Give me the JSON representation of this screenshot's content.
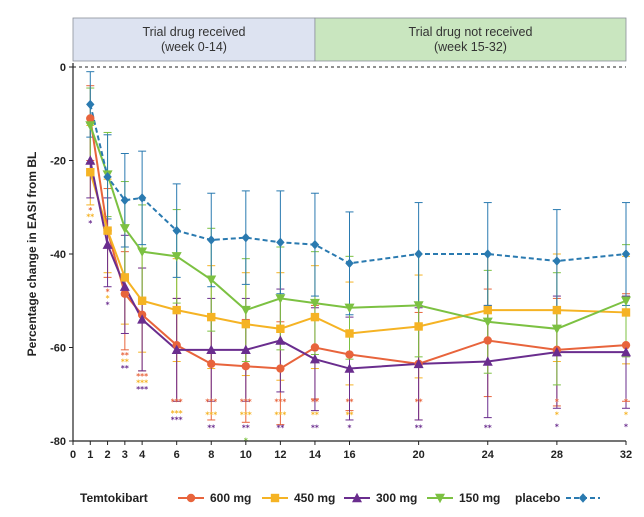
{
  "chart_data": {
    "type": "line",
    "title": "",
    "xlabel": "",
    "ylabel": "Percentage change in EASI from BL",
    "x_ticks": [
      0,
      1,
      2,
      3,
      4,
      6,
      8,
      10,
      12,
      14,
      16,
      20,
      24,
      28,
      32
    ],
    "y_ticks": [
      0,
      -20,
      -40,
      -60,
      -80
    ],
    "xlim": [
      0,
      32
    ],
    "ylim": [
      -80,
      0
    ],
    "period_bands": [
      {
        "label_line1": "Trial drug received",
        "label_line2": "(week 0-14)",
        "x_start": 0,
        "x_end": 14,
        "color": "#dde3f1"
      },
      {
        "label_line1": "Trial drug not received",
        "label_line2": "(week 15-32)",
        "x_start": 14,
        "x_end": 32,
        "color": "#c9e6bf"
      }
    ],
    "legend_title": "Temtokibart",
    "series": [
      {
        "name": "600 mg",
        "color": "#e8643c",
        "marker": "circle",
        "dashed": false,
        "x": [
          1,
          2,
          3,
          4,
          6,
          8,
          10,
          12,
          14,
          16,
          20,
          24,
          28,
          32
        ],
        "y": [
          -11,
          -35,
          -48.5,
          -53,
          -59.5,
          -63.5,
          -64,
          -64.5,
          -60,
          -61.5,
          -63.5,
          -58.5,
          -60.5,
          -59.5
        ],
        "err_up": [
          7,
          9,
          9,
          10,
          10,
          10,
          10,
          10,
          9,
          10,
          11,
          11,
          11,
          11
        ],
        "err_down": [
          9,
          10,
          12,
          12,
          12,
          12,
          12,
          12,
          11,
          12,
          12,
          12,
          12,
          12
        ],
        "significance": [
          "*",
          "*",
          "**",
          "***",
          "***",
          "***",
          "***",
          "***",
          "**",
          "**",
          "**",
          "",
          "*",
          "*"
        ]
      },
      {
        "name": "450 mg",
        "color": "#f5b324",
        "marker": "square",
        "dashed": false,
        "x": [
          1,
          2,
          3,
          4,
          6,
          8,
          10,
          12,
          14,
          16,
          20,
          24,
          28,
          32
        ],
        "y": [
          -22.5,
          -35,
          -45,
          -50,
          -52,
          -53.5,
          -55,
          -56,
          -53.5,
          -57,
          -55.5,
          -52,
          -52,
          -52.5
        ],
        "err_up": [
          10,
          11,
          11,
          11,
          11,
          11,
          11,
          12,
          11,
          11,
          11,
          12,
          12,
          12
        ],
        "err_down": [
          7,
          9,
          10,
          11,
          11,
          11,
          11,
          11,
          11,
          11,
          11,
          11,
          11,
          11
        ],
        "significance": [
          "**",
          "*",
          "**",
          "***",
          "***",
          "***",
          "***",
          "***",
          "**",
          "**",
          "",
          "",
          "*",
          "*"
        ]
      },
      {
        "name": "300 mg",
        "color": "#6a2d8e",
        "marker": "triangle-up",
        "dashed": false,
        "x": [
          1,
          2,
          3,
          4,
          6,
          8,
          10,
          12,
          14,
          16,
          20,
          24,
          28,
          32
        ],
        "y": [
          -20,
          -38,
          -47,
          -54,
          -60.5,
          -60.5,
          -60.5,
          -58.5,
          -62.5,
          -64.5,
          -63.5,
          -63,
          -61,
          -61
        ],
        "err_up": [
          8,
          10,
          11,
          11,
          11,
          11,
          11,
          11,
          11,
          11,
          12,
          12,
          12,
          12
        ],
        "err_down": [
          8,
          9,
          10,
          11,
          11,
          11,
          11,
          11,
          11,
          11,
          12,
          12,
          12,
          12
        ],
        "significance": [
          "*",
          "*",
          "**",
          "***",
          "***",
          "**",
          "**",
          "**",
          "**",
          "*",
          "**",
          "**",
          "*",
          "*"
        ]
      },
      {
        "name": "150 mg",
        "color": "#7cc142",
        "marker": "triangle-down",
        "dashed": false,
        "x": [
          1,
          2,
          3,
          4,
          6,
          8,
          10,
          12,
          14,
          16,
          20,
          24,
          28,
          32
        ],
        "y": [
          -12.5,
          -23,
          -34.5,
          -39.5,
          -40.5,
          -45.5,
          -52,
          -49.5,
          -50.5,
          -51.5,
          -51,
          -54.5,
          -56,
          -50
        ],
        "err_up": [
          8,
          9,
          10,
          10,
          10,
          11,
          11,
          11,
          11,
          11,
          11,
          11,
          12,
          12
        ],
        "err_down": [
          8,
          9,
          10,
          10,
          10,
          11,
          11,
          11,
          11,
          11,
          11,
          11,
          12,
          12
        ],
        "significance": [
          "",
          "",
          "",
          "",
          "",
          "",
          "*",
          "",
          "",
          "",
          "",
          "",
          "",
          ""
        ]
      },
      {
        "name": "placebo",
        "color": "#2a7ab0",
        "marker": "diamond",
        "dashed": true,
        "x": [
          1,
          2,
          3,
          4,
          6,
          8,
          10,
          12,
          14,
          16,
          20,
          24,
          28,
          32
        ],
        "y": [
          -8,
          -23.5,
          -28.5,
          -28,
          -35,
          -37,
          -36.5,
          -37.5,
          -38,
          -42,
          -40,
          -40,
          -41.5,
          -40
        ],
        "err_up": [
          7,
          9,
          10,
          10,
          10,
          10,
          10,
          11,
          11,
          11,
          11,
          11,
          11,
          11
        ],
        "err_down": [
          7,
          9,
          10,
          10,
          10,
          10,
          10,
          11,
          11,
          11,
          11,
          11,
          11,
          11
        ],
        "significance": [
          "",
          "",
          "",
          "",
          "",
          "",
          "",
          "",
          "",
          "",
          "",
          "",
          "",
          ""
        ]
      }
    ],
    "grid": false,
    "legend_position": "bottom"
  }
}
